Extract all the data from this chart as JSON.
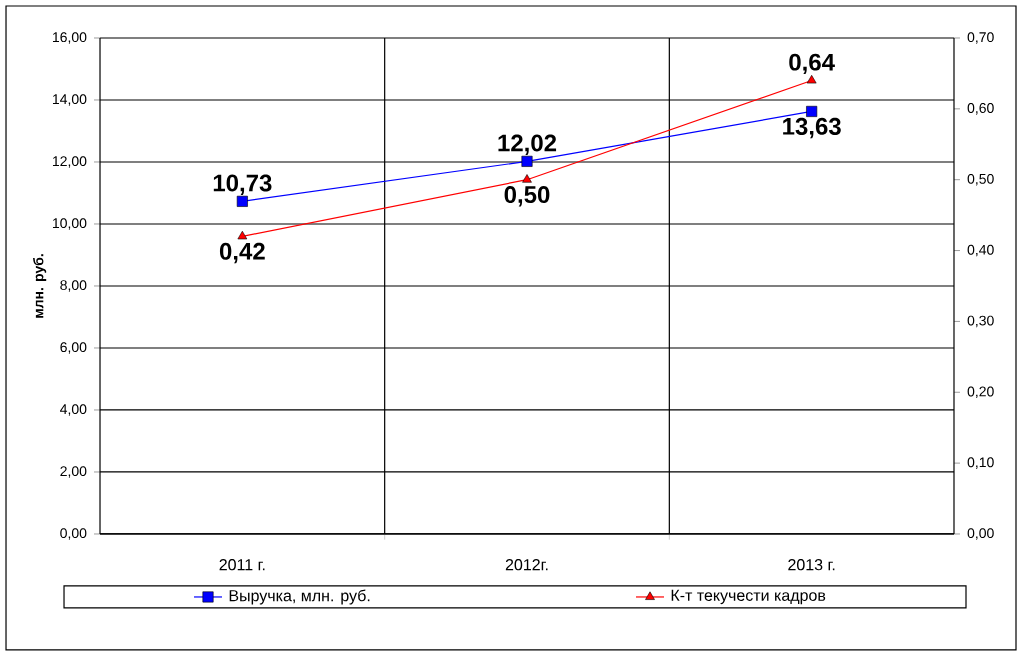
{
  "chart_data": {
    "type": "line",
    "ylabel": "млн. руб.",
    "categories": [
      "2011 г.",
      "2012г.",
      "2013 г."
    ],
    "series": [
      {
        "name": "Выручка, млн. руб.",
        "color": "#0000ff",
        "marker": "square",
        "values": [
          10.73,
          12.02,
          13.63
        ],
        "value_labels": [
          "10,73",
          "12,02",
          "13,63"
        ]
      },
      {
        "name": "К-т текучести кадров",
        "color": "#ff0000",
        "marker": "triangle",
        "axis": "y2",
        "values": [
          0.42,
          0.5,
          0.64
        ],
        "value_labels": [
          "0,42",
          "0,50",
          "0,64"
        ]
      }
    ],
    "ylim": [
      0,
      16
    ],
    "yticks": [
      {
        "value": 0,
        "label": "0,00"
      },
      {
        "value": 2,
        "label": "2,00"
      },
      {
        "value": 4,
        "label": "4,00"
      },
      {
        "value": 6,
        "label": "6,00"
      },
      {
        "value": 8,
        "label": "8,00"
      },
      {
        "value": 10,
        "label": "10,00"
      },
      {
        "value": 12,
        "label": "12,00"
      },
      {
        "value": 14,
        "label": "14,00"
      },
      {
        "value": 16,
        "label": "16,00"
      }
    ],
    "y2lim": [
      0,
      0.7
    ],
    "y2ticks": [
      {
        "value": 0,
        "label": "0,00"
      },
      {
        "value": 0.1,
        "label": "0,10"
      },
      {
        "value": 0.2,
        "label": "0,20"
      },
      {
        "value": 0.3,
        "label": "0,30"
      },
      {
        "value": 0.4,
        "label": "0,40"
      },
      {
        "value": 0.5,
        "label": "0,50"
      },
      {
        "value": 0.6,
        "label": "0,60"
      },
      {
        "value": 0.7,
        "label": "0,70"
      }
    ],
    "grid": true,
    "legend": "bottom",
    "line_style": "solid"
  }
}
